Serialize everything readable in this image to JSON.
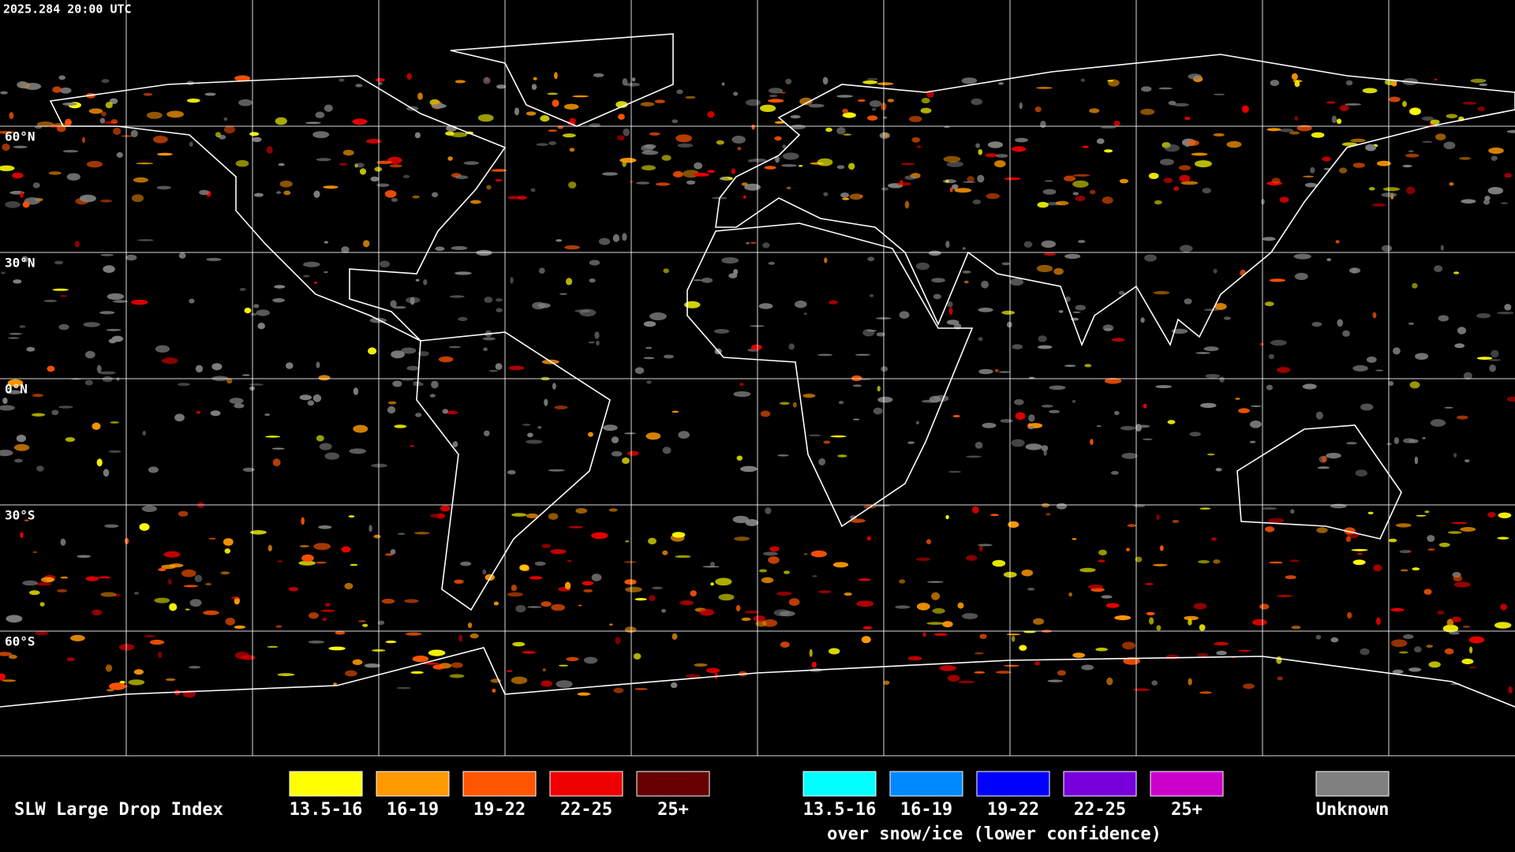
{
  "header": {
    "timestamp": "2025.284 20:00 UTC"
  },
  "map": {
    "latitude_labels": [
      "60°N",
      "30°N",
      "0°N",
      "30°S",
      "60°S"
    ]
  },
  "legend": {
    "title": "SLW Large Drop Index",
    "groups": [
      {
        "items": [
          {
            "label": "13.5-16",
            "color": "#ffff00"
          },
          {
            "label": "16-19",
            "color": "#ff9900"
          },
          {
            "label": "19-22",
            "color": "#ff5500"
          },
          {
            "label": "22-25",
            "color": "#ee0000"
          },
          {
            "label": "25+",
            "color": "#660000"
          }
        ]
      },
      {
        "items": [
          {
            "label": "13.5-16",
            "color": "#00ffff"
          },
          {
            "label": "16-19",
            "color": "#0088ff"
          },
          {
            "label": "19-22",
            "color": "#0000ff"
          },
          {
            "label": "22-25",
            "color": "#7700dd"
          },
          {
            "label": "25+",
            "color": "#cc00cc"
          }
        ],
        "caption": "over snow/ice (lower confidence)"
      }
    ],
    "unknown": {
      "label": "Unknown",
      "color": "#808080"
    }
  }
}
